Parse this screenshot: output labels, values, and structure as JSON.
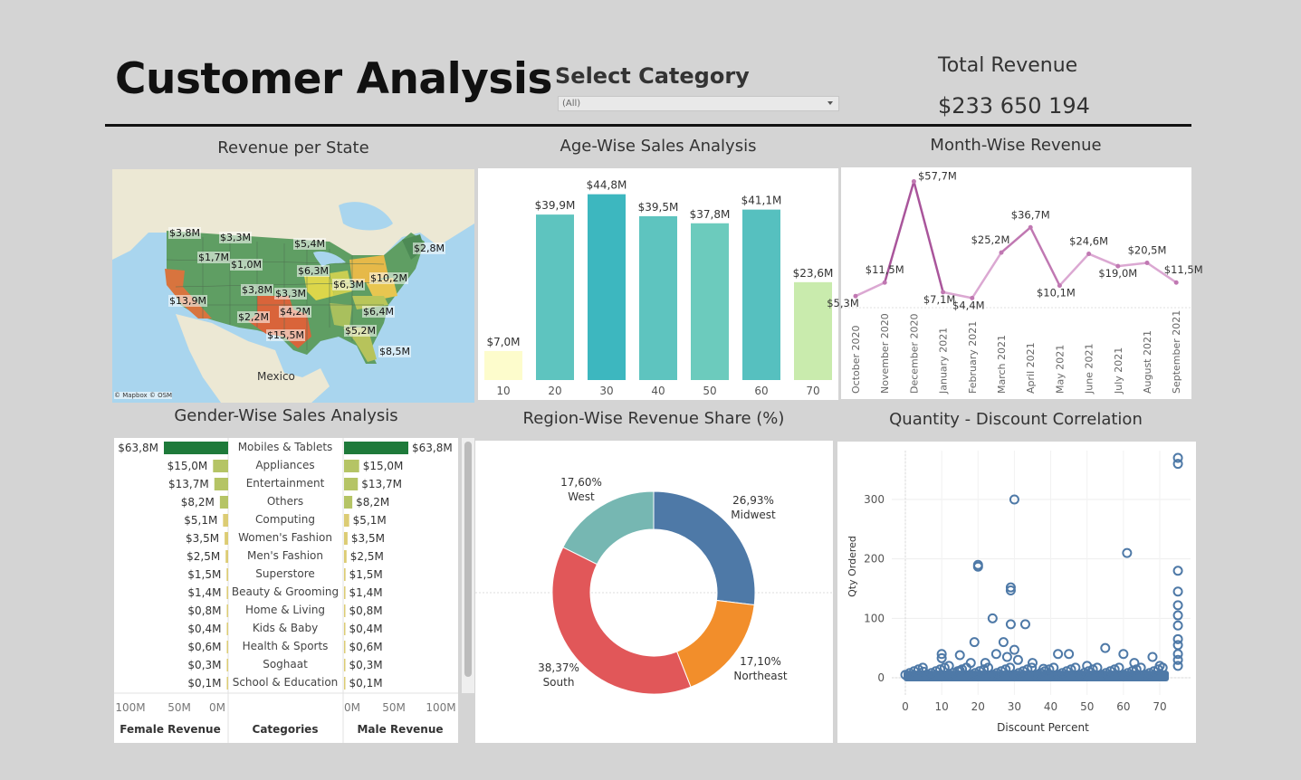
{
  "header": {
    "title": "Customer Analysis",
    "filter_label": "Select Category",
    "filter_value": "(All)",
    "kpi_label": "Total Revenue",
    "kpi_value": "$233 650 194"
  },
  "colors": {
    "age_bar": "#5ec4bf",
    "line": "#c98abf",
    "donut_midwest": "#4e79a7",
    "donut_northeast": "#f28e2b",
    "donut_south": "#e15759",
    "donut_west": "#76b7b2",
    "scatter": "#4e79a7",
    "female_top": "#1e7a3a",
    "bar_mid": "#b5c465"
  },
  "chart_data": [
    {
      "type": "map",
      "title": "Revenue per State",
      "place_label": "Mexico",
      "attribution": "© Mapbox © OSM",
      "labels": [
        "$3,8M",
        "$3,3M",
        "$1,7M",
        "$1,0M",
        "$5,4M",
        "$2,8M",
        "$6,3M",
        "$6,3M",
        "$10,2M",
        "$13,9M",
        "$3,8M",
        "$3,3M",
        "$2,2M",
        "$4,2M",
        "$6,4M",
        "$15,5M",
        "$5,2M",
        "$8,5M"
      ]
    },
    {
      "type": "bar",
      "title": "Age-Wise Sales Analysis",
      "categories": [
        "10",
        "20",
        "30",
        "40",
        "50",
        "60",
        "70"
      ],
      "values": [
        7.0,
        39.9,
        44.8,
        39.5,
        37.8,
        41.1,
        23.6
      ],
      "value_labels": [
        "$7,0M",
        "$39,9M",
        "$44,8M",
        "$39,5M",
        "$37,8M",
        "$41,1M",
        "$23,6M"
      ],
      "ylim": [
        0,
        48
      ]
    },
    {
      "type": "line",
      "title": "Month-Wise Revenue",
      "categories": [
        "October 2020",
        "November 2020",
        "December 2020",
        "January 2021",
        "February 2021",
        "March 2021",
        "April 2021",
        "May 2021",
        "June 2021",
        "July 2021",
        "August 2021",
        "September 2021"
      ],
      "values": [
        5.3,
        11.5,
        57.7,
        7.1,
        4.4,
        25.2,
        36.7,
        10.1,
        24.6,
        19.0,
        20.5,
        11.5
      ],
      "value_labels": [
        "$5,3M",
        "$11,5M",
        "$57,7M",
        "$7,1M",
        "$4,4M",
        "$25,2M",
        "$36,7M",
        "$10,1M",
        "$24,6M",
        "$19,0M",
        "$20,5M",
        "$11,5M"
      ],
      "ylim": [
        0,
        60
      ]
    },
    {
      "type": "bar",
      "title": "Gender-Wise Sales Analysis",
      "categories": [
        "Mobiles & Tablets",
        "Appliances",
        "Entertainment",
        "Others",
        "Computing",
        "Women's Fashion",
        "Men's Fashion",
        "Superstore",
        "Beauty & Grooming",
        "Home & Living",
        "Kids & Baby",
        "Health & Sports",
        "Soghaat",
        "School & Education"
      ],
      "series": [
        {
          "name": "Female Revenue",
          "values": [
            63.8,
            15.0,
            13.7,
            8.2,
            5.1,
            3.5,
            2.5,
            1.5,
            1.4,
            0.8,
            0.4,
            0.6,
            0.3,
            0.1
          ]
        },
        {
          "name": "Male Revenue",
          "values": [
            63.8,
            15.0,
            13.7,
            8.2,
            5.1,
            3.5,
            2.5,
            1.5,
            1.4,
            0.8,
            0.4,
            0.6,
            0.3,
            0.1
          ]
        }
      ],
      "value_labels": [
        "$63,8M",
        "$15,0M",
        "$13,7M",
        "$8,2M",
        "$5,1M",
        "$3,5M",
        "$2,5M",
        "$1,5M",
        "$1,4M",
        "$0,8M",
        "$0,4M",
        "$0,6M",
        "$0,3M",
        "$0,1M"
      ],
      "female_ticks": [
        "100M",
        "50M",
        "0M"
      ],
      "male_ticks": [
        "0M",
        "50M",
        "100M"
      ],
      "categories_header": "Categories",
      "xlim": [
        0,
        100
      ]
    },
    {
      "type": "pie",
      "title": "Region-Wise Revenue Share (%)",
      "categories": [
        "Midwest",
        "Northeast",
        "South",
        "West"
      ],
      "values": [
        26.93,
        17.1,
        38.37,
        17.6
      ],
      "value_labels": [
        "26,93%",
        "17,10%",
        "38,37%",
        "17,60%"
      ]
    },
    {
      "type": "scatter",
      "title": "Quantity - Discount Correlation",
      "xlabel": "Discount Percent",
      "ylabel": "Qty Ordered",
      "xticks": [
        "0",
        "10",
        "20",
        "30",
        "40",
        "50",
        "60",
        "70"
      ],
      "yticks": [
        "0",
        "100",
        "200",
        "300"
      ],
      "xlim": [
        -3,
        77
      ],
      "ylim": [
        -20,
        380
      ],
      "points": [
        [
          75,
          370
        ],
        [
          75,
          360
        ],
        [
          30,
          300
        ],
        [
          61,
          210
        ],
        [
          75,
          180
        ],
        [
          20,
          190
        ],
        [
          20,
          187
        ],
        [
          29,
          152
        ],
        [
          29,
          147
        ],
        [
          75,
          145
        ],
        [
          75,
          122
        ],
        [
          75,
          105
        ],
        [
          75,
          88
        ],
        [
          24,
          100
        ],
        [
          29,
          90
        ],
        [
          33,
          90
        ],
        [
          19,
          60
        ],
        [
          27,
          60
        ],
        [
          30,
          47
        ],
        [
          75,
          65
        ],
        [
          75,
          55
        ],
        [
          75,
          40
        ],
        [
          75,
          30
        ],
        [
          75,
          20
        ],
        [
          10,
          40
        ],
        [
          10,
          33
        ],
        [
          15,
          38
        ],
        [
          55,
          50
        ],
        [
          60,
          40
        ],
        [
          68,
          35
        ],
        [
          45,
          40
        ],
        [
          42,
          40
        ],
        [
          25,
          40
        ],
        [
          22,
          25
        ],
        [
          28,
          35
        ],
        [
          31,
          30
        ],
        [
          12,
          20
        ],
        [
          18,
          25
        ],
        [
          35,
          25
        ],
        [
          50,
          20
        ],
        [
          63,
          25
        ],
        [
          70,
          20
        ],
        [
          5,
          10
        ],
        [
          15,
          12
        ],
        [
          38,
          15
        ]
      ],
      "band": [
        [
          0,
          72,
          0,
          12
        ]
      ]
    }
  ]
}
